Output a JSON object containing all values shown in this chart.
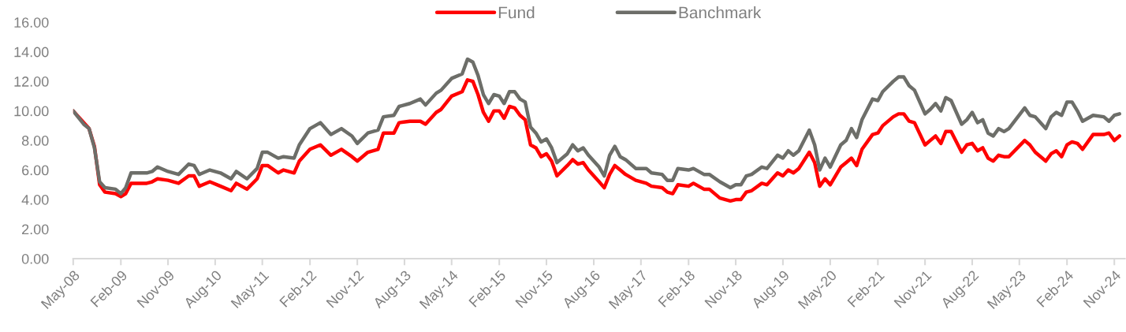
{
  "chart_data": {
    "type": "line",
    "x": [
      "2008-05",
      "2008-07",
      "2008-08",
      "2008-09",
      "2008-10",
      "2008-11",
      "2009-01",
      "2009-02",
      "2009-03",
      "2009-04",
      "2009-07",
      "2009-08",
      "2009-09",
      "2009-11",
      "2010-01",
      "2010-03",
      "2010-04",
      "2010-05",
      "2010-07",
      "2010-09",
      "2010-11",
      "2010-12",
      "2011-02",
      "2011-04",
      "2011-05",
      "2011-06",
      "2011-08",
      "2011-09",
      "2011-11",
      "2011-12",
      "2012-02",
      "2012-04",
      "2012-06",
      "2012-08",
      "2012-10",
      "2012-11",
      "2013-01",
      "2013-03",
      "2013-04",
      "2013-06",
      "2013-07",
      "2013-09",
      "2013-11",
      "2013-12",
      "2014-02",
      "2014-03",
      "2014-05",
      "2014-07",
      "2014-08",
      "2014-09",
      "2014-10",
      "2014-11",
      "2014-12",
      "2015-01",
      "2015-02",
      "2015-03",
      "2015-04",
      "2015-05",
      "2015-06",
      "2015-07",
      "2015-08",
      "2015-09",
      "2015-10",
      "2015-11",
      "2015-12",
      "2016-01",
      "2016-03",
      "2016-04",
      "2016-05",
      "2016-06",
      "2016-07",
      "2016-09",
      "2016-10",
      "2016-11",
      "2016-12",
      "2017-01",
      "2017-02",
      "2017-04",
      "2017-06",
      "2017-07",
      "2017-09",
      "2017-10",
      "2017-11",
      "2017-12",
      "2018-02",
      "2018-03",
      "2018-05",
      "2018-06",
      "2018-08",
      "2018-10",
      "2018-11",
      "2018-12",
      "2019-01",
      "2019-02",
      "2019-04",
      "2019-05",
      "2019-07",
      "2019-08",
      "2019-09",
      "2019-10",
      "2019-11",
      "2020-01",
      "2020-02",
      "2020-03",
      "2020-04",
      "2020-05",
      "2020-07",
      "2020-08",
      "2020-09",
      "2020-10",
      "2020-11",
      "2021-01",
      "2021-02",
      "2021-03",
      "2021-05",
      "2021-06",
      "2021-07",
      "2021-08",
      "2021-09",
      "2021-11",
      "2021-12",
      "2022-01",
      "2022-02",
      "2022-03",
      "2022-04",
      "2022-06",
      "2022-07",
      "2022-08",
      "2022-09",
      "2022-10",
      "2022-11",
      "2022-12",
      "2023-01",
      "2023-02",
      "2023-03",
      "2023-06",
      "2023-07",
      "2023-08",
      "2023-10",
      "2023-11",
      "2023-12",
      "2024-01",
      "2024-02",
      "2024-03",
      "2024-04",
      "2024-05",
      "2024-07",
      "2024-09",
      "2024-10",
      "2024-11",
      "2024-12"
    ],
    "series": [
      {
        "name": "Fund",
        "color": "#ff0000",
        "values": [
          10.0,
          9.2,
          8.8,
          7.6,
          5.0,
          4.5,
          4.4,
          4.2,
          4.4,
          5.1,
          5.1,
          5.2,
          5.4,
          5.3,
          5.1,
          5.6,
          5.6,
          4.9,
          5.2,
          4.9,
          4.6,
          5.1,
          4.7,
          5.4,
          6.3,
          6.3,
          5.8,
          6.0,
          5.8,
          6.6,
          7.4,
          7.7,
          7.0,
          7.4,
          6.9,
          6.6,
          7.2,
          7.4,
          8.5,
          8.5,
          9.2,
          9.3,
          9.3,
          9.1,
          9.9,
          10.1,
          11.0,
          11.3,
          12.1,
          12.0,
          11.1,
          9.9,
          9.3,
          10.0,
          10.0,
          9.5,
          10.3,
          10.2,
          9.7,
          9.4,
          7.7,
          7.5,
          6.9,
          7.1,
          6.6,
          5.6,
          6.3,
          6.7,
          6.4,
          6.5,
          6.0,
          5.2,
          4.8,
          5.7,
          6.3,
          6.0,
          5.7,
          5.3,
          5.1,
          4.9,
          4.8,
          4.5,
          4.4,
          5.0,
          4.9,
          5.1,
          4.7,
          4.7,
          4.1,
          3.9,
          4.0,
          4.0,
          4.5,
          4.6,
          5.1,
          5.0,
          5.8,
          5.6,
          6.0,
          5.8,
          6.1,
          7.2,
          6.5,
          4.9,
          5.4,
          5.0,
          6.2,
          6.5,
          6.8,
          6.3,
          7.4,
          8.4,
          8.5,
          9.0,
          9.6,
          9.8,
          9.8,
          9.3,
          9.2,
          7.7,
          8.0,
          8.3,
          7.8,
          8.6,
          8.6,
          7.2,
          7.7,
          7.8,
          7.3,
          7.5,
          6.8,
          6.6,
          7.0,
          6.9,
          6.9,
          8.0,
          7.7,
          7.2,
          6.6,
          7.1,
          7.3,
          6.9,
          7.7,
          7.9,
          7.8,
          7.4,
          8.4,
          8.4,
          8.5,
          8.0,
          8.3
        ]
      },
      {
        "name": "Banchmark",
        "color": "#6d6e69",
        "values": [
          10.0,
          9.1,
          8.8,
          7.5,
          5.2,
          4.8,
          4.7,
          4.4,
          4.8,
          5.8,
          5.8,
          5.9,
          6.2,
          5.9,
          5.7,
          6.4,
          6.3,
          5.7,
          6.0,
          5.8,
          5.4,
          5.9,
          5.4,
          6.1,
          7.2,
          7.2,
          6.8,
          6.9,
          6.8,
          7.7,
          8.8,
          9.2,
          8.4,
          8.8,
          8.3,
          7.8,
          8.5,
          8.7,
          9.6,
          9.7,
          10.3,
          10.5,
          10.8,
          10.4,
          11.2,
          11.4,
          12.2,
          12.5,
          13.5,
          13.3,
          12.4,
          11.1,
          10.5,
          11.1,
          11.0,
          10.5,
          11.3,
          11.3,
          10.8,
          10.6,
          8.9,
          8.5,
          7.9,
          8.1,
          7.5,
          6.5,
          7.1,
          7.7,
          7.3,
          7.5,
          7.0,
          6.2,
          5.6,
          7.0,
          7.6,
          6.9,
          6.7,
          6.1,
          6.1,
          5.8,
          5.7,
          5.3,
          5.3,
          6.1,
          6.0,
          6.1,
          5.7,
          5.7,
          5.2,
          4.8,
          5.0,
          5.0,
          5.6,
          5.7,
          6.2,
          6.1,
          7.0,
          6.8,
          7.3,
          7.0,
          7.3,
          8.7,
          7.7,
          6.0,
          6.8,
          6.2,
          7.7,
          8.0,
          8.8,
          8.2,
          9.4,
          10.8,
          10.7,
          11.3,
          12.0,
          12.3,
          12.3,
          11.7,
          11.4,
          9.8,
          10.1,
          10.5,
          10.0,
          10.9,
          10.7,
          9.1,
          9.4,
          9.9,
          9.2,
          9.4,
          8.5,
          8.3,
          8.8,
          8.6,
          8.8,
          10.2,
          9.7,
          9.6,
          8.8,
          9.6,
          9.9,
          9.7,
          10.6,
          10.6,
          10.0,
          9.3,
          9.7,
          9.6,
          9.3,
          9.7,
          9.8
        ]
      }
    ],
    "xlim": [
      "2008-05",
      "2025-01"
    ],
    "xticks": [
      {
        "value": "2008-05",
        "label": "May-08"
      },
      {
        "value": "2009-02",
        "label": "Feb-09"
      },
      {
        "value": "2009-11",
        "label": "Nov-09"
      },
      {
        "value": "2010-08",
        "label": "Aug-10"
      },
      {
        "value": "2011-05",
        "label": "May-11"
      },
      {
        "value": "2012-02",
        "label": "Feb-12"
      },
      {
        "value": "2012-11",
        "label": "Nov-12"
      },
      {
        "value": "2013-08",
        "label": "Aug-13"
      },
      {
        "value": "2014-05",
        "label": "May-14"
      },
      {
        "value": "2015-02",
        "label": "Feb-15"
      },
      {
        "value": "2015-11",
        "label": "Nov-15"
      },
      {
        "value": "2016-08",
        "label": "Aug-16"
      },
      {
        "value": "2017-05",
        "label": "May-17"
      },
      {
        "value": "2018-02",
        "label": "Feb-18"
      },
      {
        "value": "2018-11",
        "label": "Nov-18"
      },
      {
        "value": "2019-08",
        "label": "Aug-19"
      },
      {
        "value": "2020-05",
        "label": "May-20"
      },
      {
        "value": "2021-02",
        "label": "Feb-21"
      },
      {
        "value": "2021-11",
        "label": "Nov-21"
      },
      {
        "value": "2022-08",
        "label": "Aug-22"
      },
      {
        "value": "2023-05",
        "label": "May-23"
      },
      {
        "value": "2024-02",
        "label": "Feb-24"
      },
      {
        "value": "2024-11",
        "label": "Nov-24"
      }
    ],
    "ylim": [
      0,
      16
    ],
    "yticks": [
      {
        "value": 0,
        "label": "0.00"
      },
      {
        "value": 2,
        "label": "2.00"
      },
      {
        "value": 4,
        "label": "4.00"
      },
      {
        "value": 6,
        "label": "6.00"
      },
      {
        "value": 8,
        "label": "8.00"
      },
      {
        "value": 10,
        "label": "10.00"
      },
      {
        "value": 12,
        "label": "12.00"
      },
      {
        "value": 14,
        "label": "14.00"
      },
      {
        "value": 16,
        "label": "16.00"
      }
    ],
    "grid": false,
    "legend": "top",
    "marker": "none",
    "line_style": "solid"
  }
}
